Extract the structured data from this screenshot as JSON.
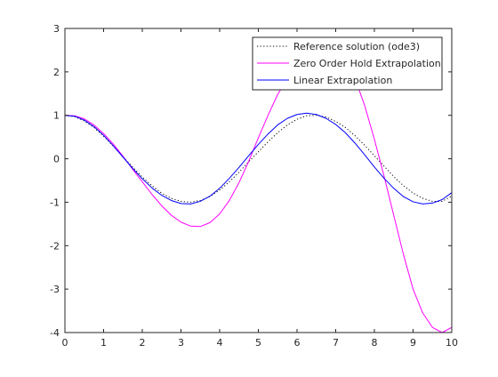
{
  "chart_data": {
    "type": "line",
    "title": "",
    "xlabel": "",
    "ylabel": "",
    "xlim": [
      0,
      10
    ],
    "ylim": [
      -4,
      3
    ],
    "xticks": [
      "0",
      "1",
      "2",
      "3",
      "4",
      "5",
      "6",
      "7",
      "8",
      "9",
      "10"
    ],
    "yticks": [
      "-4",
      "-3",
      "-2",
      "-1",
      "0",
      "1",
      "2",
      "3"
    ],
    "grid": false,
    "legend_position": "top-right",
    "series": [
      {
        "name": "Reference solution (ode3)",
        "color": "#000000",
        "line_style": "dotted",
        "x": [
          0,
          0.25,
          0.5,
          0.75,
          1,
          1.25,
          1.5,
          1.75,
          2,
          2.25,
          2.5,
          2.75,
          3,
          3.25,
          3.5,
          3.75,
          4,
          4.25,
          4.5,
          4.75,
          5,
          5.25,
          5.5,
          5.75,
          6,
          6.25,
          6.5,
          6.75,
          7,
          7.25,
          7.5,
          7.75,
          8,
          8.25,
          8.5,
          8.75,
          9,
          9.25,
          9.5,
          9.75,
          10
        ],
        "values": [
          1.0,
          0.97,
          0.87,
          0.72,
          0.52,
          0.29,
          0.05,
          -0.19,
          -0.42,
          -0.62,
          -0.79,
          -0.91,
          -0.98,
          -1.0,
          -0.96,
          -0.87,
          -0.72,
          -0.53,
          -0.31,
          -0.07,
          0.16,
          0.39,
          0.6,
          0.78,
          0.91,
          0.99,
          1.0,
          0.96,
          0.86,
          0.72,
          0.53,
          0.31,
          0.07,
          -0.17,
          -0.41,
          -0.62,
          -0.79,
          -0.91,
          -0.98,
          -0.98,
          -0.86
        ]
      },
      {
        "name": "Zero Order Hold Extrapolation",
        "color": "#ff00ff",
        "line_style": "solid",
        "x": [
          0,
          0.25,
          0.5,
          0.75,
          1,
          1.25,
          1.5,
          1.75,
          2,
          2.25,
          2.5,
          2.75,
          3,
          3.25,
          3.5,
          3.75,
          4,
          4.25,
          4.5,
          4.75,
          5,
          5.25,
          5.5,
          5.75,
          6,
          6.25,
          6.5,
          6.75,
          7,
          7.25,
          7.5,
          7.75,
          8,
          8.25,
          8.5,
          8.75,
          9,
          9.25,
          9.5,
          9.75,
          10
        ],
        "values": [
          1.0,
          0.99,
          0.92,
          0.78,
          0.58,
          0.34,
          0.06,
          -0.24,
          -0.53,
          -0.82,
          -1.08,
          -1.3,
          -1.46,
          -1.55,
          -1.56,
          -1.47,
          -1.27,
          -0.96,
          -0.55,
          -0.06,
          0.48,
          1.0,
          1.48,
          1.85,
          2.1,
          2.2,
          2.2,
          2.2,
          2.2,
          2.1,
          1.85,
          1.22,
          0.45,
          -0.4,
          -1.3,
          -2.2,
          -3.0,
          -3.55,
          -3.88,
          -4.0,
          -3.88
        ]
      },
      {
        "name": "Linear Extrapolation",
        "color": "#0000ff",
        "line_style": "solid",
        "x": [
          0,
          0.25,
          0.5,
          0.75,
          1,
          1.25,
          1.5,
          1.75,
          2,
          2.25,
          2.5,
          2.75,
          3,
          3.25,
          3.5,
          3.75,
          4,
          4.25,
          4.5,
          4.75,
          5,
          5.25,
          5.5,
          5.75,
          6,
          6.25,
          6.5,
          6.75,
          7,
          7.25,
          7.5,
          7.75,
          8,
          8.25,
          8.5,
          8.75,
          9,
          9.25,
          9.5,
          9.75,
          10
        ],
        "values": [
          1.0,
          0.98,
          0.89,
          0.74,
          0.54,
          0.3,
          0.04,
          -0.22,
          -0.46,
          -0.67,
          -0.84,
          -0.96,
          -1.03,
          -1.04,
          -0.98,
          -0.86,
          -0.68,
          -0.45,
          -0.2,
          0.07,
          0.33,
          0.57,
          0.78,
          0.93,
          1.02,
          1.05,
          1.02,
          0.93,
          0.79,
          0.6,
          0.36,
          0.09,
          -0.19,
          -0.45,
          -0.68,
          -0.87,
          -0.99,
          -1.04,
          -1.02,
          -0.94,
          -0.78
        ]
      }
    ]
  }
}
